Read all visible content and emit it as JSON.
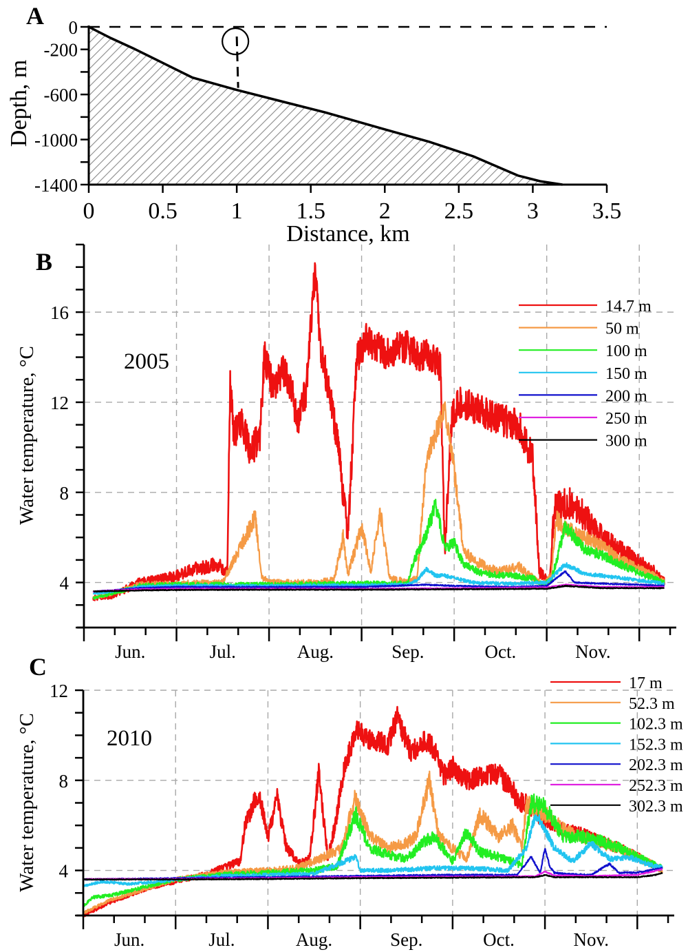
{
  "chart_data": [
    {
      "panel": "A",
      "type": "area",
      "title": "",
      "xlabel": "Distance, km",
      "ylabel": "Depth, m",
      "xlim": [
        0,
        3.5
      ],
      "ylim": [
        -1400,
        0
      ],
      "xticks": [
        "0",
        "0.5",
        "1",
        "1.5",
        "2",
        "2.5",
        "3",
        "3.5"
      ],
      "xtick_values": [
        0,
        0.5,
        1,
        1.5,
        2,
        2.5,
        3,
        3.5
      ],
      "yticks": [
        "0",
        "-200",
        "-600",
        "-1000",
        "-1400"
      ],
      "ytick_values": [
        0,
        -200,
        -600,
        -1000,
        -1400
      ],
      "ytick_minor_values": [
        -400,
        -800,
        -1200
      ],
      "sea_surface_level": 0,
      "bottom_profile": {
        "x": [
          0,
          0.15,
          0.3,
          0.5,
          0.7,
          1.0,
          1.3,
          1.6,
          2.0,
          2.3,
          2.6,
          2.9,
          3.05,
          3.2
        ],
        "y": [
          0,
          -100,
          -190,
          -320,
          -450,
          -560,
          -660,
          -760,
          -910,
          -1020,
          -1150,
          -1320,
          -1370,
          -1400
        ]
      },
      "mooring": {
        "x": 1.0,
        "top": 0,
        "bottom": -560,
        "symbol": "I"
      }
    },
    {
      "panel": "B",
      "type": "line",
      "year_label": "2005",
      "ylabel": "Water temperature, °C",
      "xlabel": "",
      "x_unit": "months since Jun 1",
      "xlim": [
        0,
        6.4
      ],
      "ylim": [
        2,
        19
      ],
      "yticks": [
        "4",
        "8",
        "12",
        "16"
      ],
      "ytick_values": [
        4,
        8,
        12,
        16
      ],
      "xtick_labels": [
        "Jun.",
        "Jul.",
        "Aug.",
        "Sep.",
        "Oct.",
        "Nov."
      ],
      "grid": true,
      "legend_position": "top-right",
      "series": [
        {
          "name": "14.7 m",
          "color": "#ee1111",
          "noise": 0.45,
          "x": [
            0.1,
            0.3,
            0.45,
            0.6,
            0.8,
            1.0,
            1.2,
            1.45,
            1.55,
            1.58,
            1.62,
            1.7,
            1.8,
            1.9,
            1.95,
            2.05,
            2.15,
            2.25,
            2.3,
            2.4,
            2.5,
            2.55,
            2.65,
            2.75,
            2.85,
            2.95,
            3.05,
            3.25,
            3.5,
            3.6,
            3.7,
            3.85,
            3.9,
            3.98,
            4.05,
            4.2,
            4.35,
            4.5,
            4.7,
            4.85,
            4.92,
            4.98,
            5.03,
            5.08,
            5.15,
            5.25,
            5.4,
            5.55,
            5.7,
            5.85,
            6.0,
            6.15,
            6.27
          ],
          "y": [
            3.3,
            3.4,
            3.7,
            4.0,
            4.1,
            4.3,
            4.6,
            4.8,
            4.5,
            12.8,
            10.5,
            11.2,
            9.8,
            10.5,
            14.1,
            12.5,
            13.5,
            12.6,
            11.0,
            12.5,
            18.0,
            14.5,
            12.5,
            10.0,
            6.0,
            14.0,
            14.8,
            14.2,
            14.5,
            14.0,
            14.2,
            13.6,
            5.5,
            11.5,
            12.0,
            11.8,
            11.5,
            11.2,
            11.0,
            9.5,
            4.5,
            4.2,
            4.0,
            7.2,
            7.4,
            7.5,
            7.0,
            6.2,
            5.7,
            5.3,
            4.9,
            4.5,
            4.0
          ]
        },
        {
          "name": "50 m",
          "color": "#f59a45",
          "noise": 0.3,
          "x": [
            0.1,
            0.3,
            0.6,
            1.0,
            1.5,
            1.85,
            1.92,
            2.0,
            2.5,
            2.7,
            2.8,
            2.85,
            3.0,
            3.1,
            3.2,
            3.3,
            3.5,
            3.6,
            3.7,
            3.9,
            4.0,
            4.1,
            4.2,
            4.3,
            4.4,
            4.5,
            4.7,
            4.85,
            4.95,
            5.05,
            5.1,
            5.2,
            5.4,
            5.6,
            5.8,
            6.0,
            6.15,
            6.27
          ],
          "y": [
            3.3,
            3.5,
            3.9,
            3.95,
            4.0,
            6.9,
            4.3,
            4.0,
            4.0,
            4.1,
            6.0,
            4.3,
            6.5,
            4.5,
            7.2,
            4.2,
            4.0,
            4.2,
            9.5,
            11.7,
            9.0,
            5.5,
            5.0,
            4.8,
            4.6,
            4.5,
            4.7,
            4.2,
            3.9,
            4.3,
            6.8,
            6.4,
            6.0,
            5.6,
            5.0,
            4.6,
            4.3,
            4.0
          ]
        },
        {
          "name": "100 m",
          "color": "#22ee22",
          "noise": 0.25,
          "x": [
            0.1,
            0.3,
            0.6,
            1.0,
            2.0,
            3.0,
            3.5,
            3.55,
            3.7,
            3.8,
            3.9,
            4.0,
            4.1,
            4.3,
            4.6,
            4.85,
            4.95,
            5.05,
            5.2,
            5.4,
            5.6,
            5.8,
            6.0,
            6.15,
            6.27
          ],
          "y": [
            3.3,
            3.5,
            3.85,
            3.9,
            3.9,
            3.95,
            3.95,
            4.8,
            6.2,
            7.5,
            5.5,
            5.8,
            4.8,
            4.4,
            4.3,
            4.2,
            3.9,
            4.1,
            6.5,
            5.5,
            5.2,
            4.8,
            4.4,
            4.2,
            4.0
          ]
        },
        {
          "name": "150 m",
          "color": "#22c4f0",
          "noise": 0.15,
          "x": [
            0.1,
            0.3,
            0.6,
            1.0,
            2.0,
            3.5,
            3.6,
            3.7,
            3.8,
            3.9,
            4.0,
            4.2,
            4.6,
            5.0,
            5.2,
            5.4,
            5.6,
            5.8,
            6.0,
            6.27
          ],
          "y": [
            3.5,
            3.6,
            3.8,
            3.85,
            3.85,
            3.9,
            4.1,
            4.6,
            4.3,
            4.3,
            4.2,
            4.0,
            3.95,
            4.0,
            4.8,
            4.4,
            4.3,
            4.2,
            4.1,
            3.95
          ]
        },
        {
          "name": "200 m",
          "color": "#1010cc",
          "noise": 0.06,
          "x": [
            0.1,
            0.3,
            0.6,
            1.0,
            2.0,
            3.0,
            3.7,
            4.0,
            4.6,
            5.0,
            5.2,
            5.3,
            5.6,
            6.0,
            6.27
          ],
          "y": [
            3.6,
            3.65,
            3.75,
            3.8,
            3.8,
            3.8,
            3.9,
            3.85,
            3.8,
            3.85,
            4.5,
            4.0,
            3.95,
            3.9,
            3.85
          ]
        },
        {
          "name": "250 m",
          "color": "#e020e0",
          "noise": 0.05,
          "x": [
            0.1,
            0.6,
            1.0,
            2.0,
            3.0,
            4.0,
            5.0,
            5.2,
            5.6,
            6.27
          ],
          "y": [
            3.6,
            3.7,
            3.72,
            3.72,
            3.72,
            3.74,
            3.78,
            3.9,
            3.8,
            3.8
          ]
        },
        {
          "name": "300 m",
          "color": "#000000",
          "noise": 0.05,
          "x": [
            0.1,
            0.6,
            1.0,
            2.0,
            3.0,
            4.0,
            5.0,
            5.2,
            5.6,
            6.27
          ],
          "y": [
            3.6,
            3.65,
            3.67,
            3.68,
            3.68,
            3.7,
            3.72,
            3.85,
            3.75,
            3.75
          ]
        }
      ]
    },
    {
      "panel": "C",
      "type": "line",
      "year_label": "2010",
      "ylabel": "Water temperature, °C",
      "xlabel": "",
      "x_unit": "months since Jun 1",
      "xlim": [
        0,
        6.4
      ],
      "ylim": [
        2,
        12
      ],
      "yticks": [
        "4",
        "8",
        "12"
      ],
      "ytick_values": [
        4,
        8,
        12
      ],
      "xtick_labels": [
        "Jun.",
        "Jul.",
        "Aug.",
        "Sep.",
        "Oct.",
        "Nov."
      ],
      "grid": true,
      "legend_position": "top-right",
      "series": [
        {
          "name": "17 m",
          "color": "#ee1111",
          "noise": 0.3,
          "x": [
            0.0,
            0.3,
            0.7,
            1.0,
            1.3,
            1.5,
            1.7,
            1.75,
            1.9,
            2.0,
            2.1,
            2.2,
            2.35,
            2.45,
            2.55,
            2.65,
            2.75,
            2.8,
            2.95,
            3.1,
            3.3,
            3.4,
            3.55,
            3.7,
            3.8,
            3.9,
            4.0,
            4.15,
            4.3,
            4.5,
            4.65,
            4.75,
            4.8,
            5.0,
            5.2,
            5.4,
            5.6,
            5.8,
            6.0,
            6.15,
            6.27
          ],
          "y": [
            2.0,
            2.6,
            3.2,
            3.5,
            3.8,
            4.1,
            4.4,
            6.0,
            7.5,
            5.5,
            7.2,
            5.0,
            4.3,
            4.5,
            8.3,
            4.5,
            6.5,
            8.0,
            10.3,
            9.8,
            9.6,
            10.8,
            9.2,
            9.8,
            9.4,
            8.2,
            8.6,
            8.0,
            8.2,
            8.3,
            7.5,
            7.0,
            7.0,
            6.2,
            5.8,
            5.6,
            5.3,
            5.0,
            4.6,
            4.3,
            4.0
          ]
        },
        {
          "name": "52.3 m",
          "color": "#f59a45",
          "noise": 0.3,
          "x": [
            0.0,
            0.3,
            0.7,
            1.0,
            1.5,
            2.0,
            2.3,
            2.45,
            2.6,
            2.8,
            2.95,
            3.1,
            3.3,
            3.5,
            3.6,
            3.75,
            3.85,
            4.0,
            4.15,
            4.3,
            4.5,
            4.65,
            4.75,
            4.8,
            5.0,
            5.2,
            5.4,
            5.6,
            5.8,
            6.0,
            6.15,
            6.27
          ],
          "y": [
            2.1,
            2.7,
            3.2,
            3.6,
            3.9,
            4.0,
            4.1,
            4.3,
            4.6,
            5.0,
            7.3,
            5.5,
            5.0,
            5.2,
            5.5,
            8.0,
            5.5,
            5.0,
            4.5,
            6.5,
            5.5,
            6.0,
            5.0,
            7.0,
            6.5,
            5.8,
            5.5,
            5.2,
            5.0,
            4.6,
            4.3,
            4.0
          ]
        },
        {
          "name": "102.3 m",
          "color": "#22ee22",
          "noise": 0.3,
          "x": [
            0.0,
            0.1,
            0.3,
            0.5,
            0.7,
            1.0,
            1.5,
            2.0,
            2.5,
            2.75,
            2.95,
            3.1,
            3.3,
            3.5,
            3.7,
            3.8,
            4.0,
            4.15,
            4.3,
            4.5,
            4.65,
            4.75,
            4.85,
            5.0,
            5.2,
            5.4,
            5.6,
            5.8,
            6.0,
            6.15,
            6.27
          ],
          "y": [
            2.4,
            2.8,
            2.9,
            3.1,
            3.3,
            3.6,
            3.8,
            3.9,
            4.0,
            4.2,
            6.5,
            5.0,
            4.7,
            4.5,
            5.3,
            5.5,
            4.4,
            5.7,
            4.8,
            4.6,
            4.4,
            4.2,
            7.0,
            6.8,
            5.5,
            5.5,
            5.3,
            5.0,
            4.6,
            4.3,
            4.1
          ]
        },
        {
          "name": "152.3 m",
          "color": "#22c4f0",
          "noise": 0.2,
          "x": [
            0.0,
            0.2,
            0.5,
            0.8,
            1.0,
            1.5,
            2.0,
            2.5,
            2.95,
            3.0,
            3.3,
            3.8,
            4.2,
            4.6,
            4.8,
            4.9,
            5.0,
            5.1,
            5.3,
            5.5,
            5.7,
            5.9,
            6.1,
            6.27
          ],
          "y": [
            3.3,
            3.5,
            3.4,
            3.5,
            3.6,
            3.75,
            3.8,
            3.85,
            4.6,
            4.0,
            4.0,
            4.1,
            4.1,
            4.0,
            5.0,
            6.5,
            5.8,
            5.0,
            4.4,
            5.2,
            4.5,
            4.6,
            4.3,
            4.1
          ]
        },
        {
          "name": "202.3 m",
          "color": "#1010cc",
          "noise": 0.08,
          "x": [
            0.0,
            1.0,
            2.0,
            3.0,
            4.0,
            4.7,
            4.85,
            4.95,
            5.0,
            5.05,
            5.1,
            5.2,
            5.5,
            5.7,
            5.8,
            6.0,
            6.27
          ],
          "y": [
            3.6,
            3.65,
            3.7,
            3.75,
            3.8,
            3.8,
            4.6,
            3.9,
            5.0,
            4.2,
            3.9,
            3.85,
            3.8,
            4.3,
            3.9,
            3.9,
            4.1
          ]
        },
        {
          "name": "252.3 m",
          "color": "#e020e0",
          "noise": 0.05,
          "x": [
            0.0,
            1.0,
            2.0,
            3.0,
            4.0,
            4.9,
            5.0,
            5.1,
            5.5,
            6.0,
            6.27
          ],
          "y": [
            3.62,
            3.62,
            3.66,
            3.7,
            3.72,
            3.74,
            3.95,
            3.78,
            3.75,
            3.8,
            4.05
          ]
        },
        {
          "name": "302.3 m",
          "color": "#000000",
          "noise": 0.05,
          "x": [
            0.0,
            1.0,
            2.0,
            3.0,
            4.0,
            4.9,
            5.0,
            5.1,
            5.5,
            6.0,
            6.2,
            6.27
          ],
          "y": [
            3.6,
            3.6,
            3.62,
            3.66,
            3.68,
            3.7,
            3.8,
            3.7,
            3.7,
            3.7,
            3.8,
            3.9
          ]
        }
      ]
    }
  ]
}
